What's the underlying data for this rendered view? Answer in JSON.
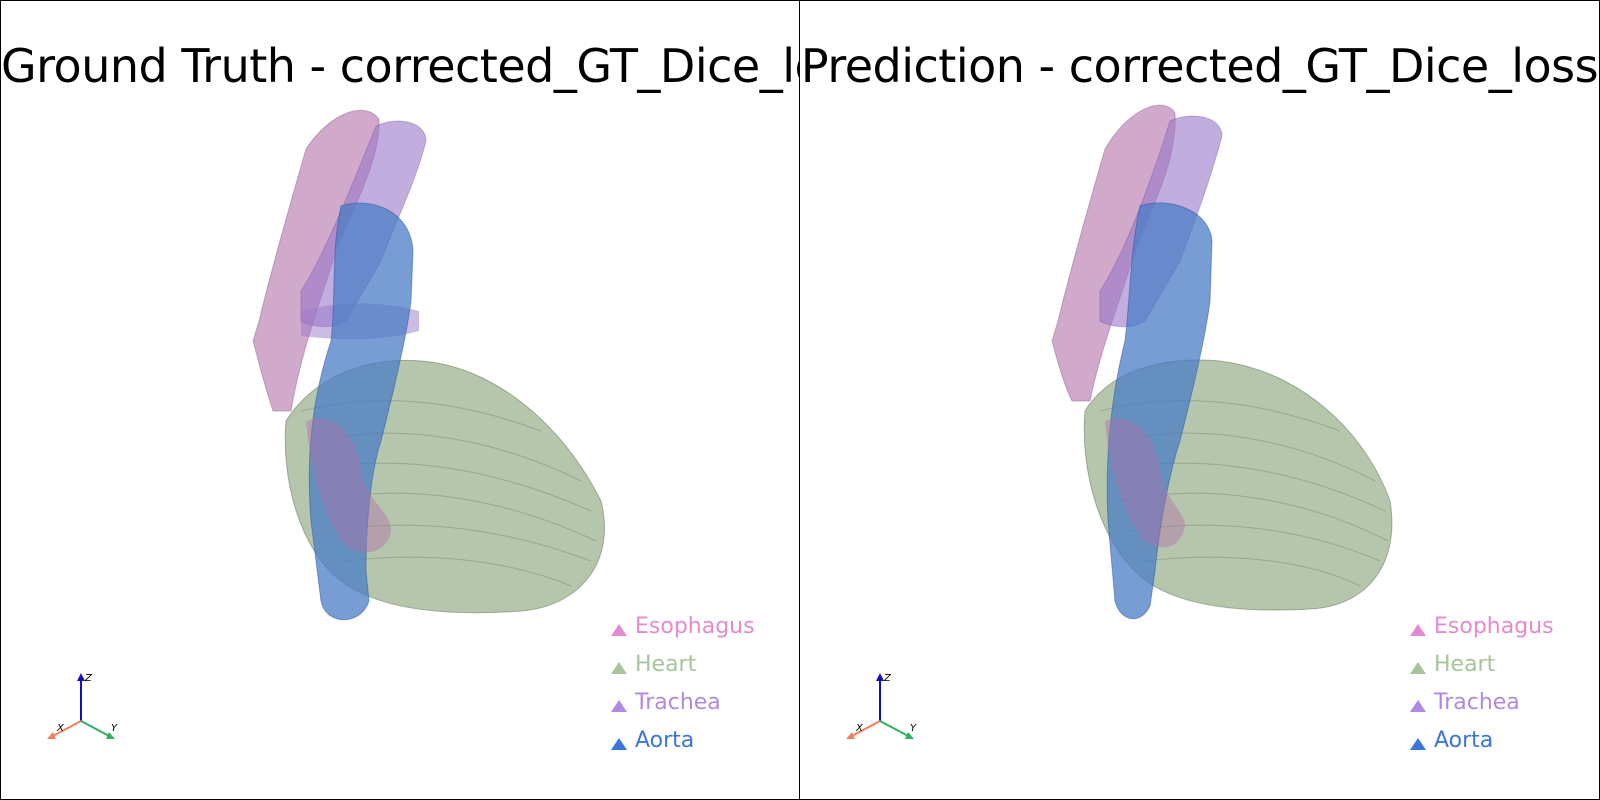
{
  "viewports": [
    {
      "title": "Ground Truth - corrected_GT_Dice_loss",
      "legend": [
        {
          "label": "Esophagus",
          "color": "#e48ad0"
        },
        {
          "label": "Heart",
          "color": "#a8c49a"
        },
        {
          "label": "Trachea",
          "color": "#b08ae0"
        },
        {
          "label": "Aorta",
          "color": "#3a76dc"
        }
      ],
      "axes": {
        "x": "X",
        "y": "Y",
        "z": "Z"
      }
    },
    {
      "title": "Prediction - corrected_GT_Dice_loss",
      "legend": [
        {
          "label": "Esophagus",
          "color": "#e48ad0"
        },
        {
          "label": "Heart",
          "color": "#a8c49a"
        },
        {
          "label": "Trachea",
          "color": "#b08ae0"
        },
        {
          "label": "Aorta",
          "color": "#3a76dc"
        }
      ],
      "axes": {
        "x": "X",
        "y": "Y",
        "z": "Z"
      }
    }
  ],
  "colors": {
    "esophagus": "#b070a8",
    "trachea": "#9a78c8",
    "aorta": "#4a7cc6",
    "heart": "#8fa880",
    "axis_x": "#f08060",
    "axis_y": "#30b060",
    "axis_z": "#1010c0"
  }
}
